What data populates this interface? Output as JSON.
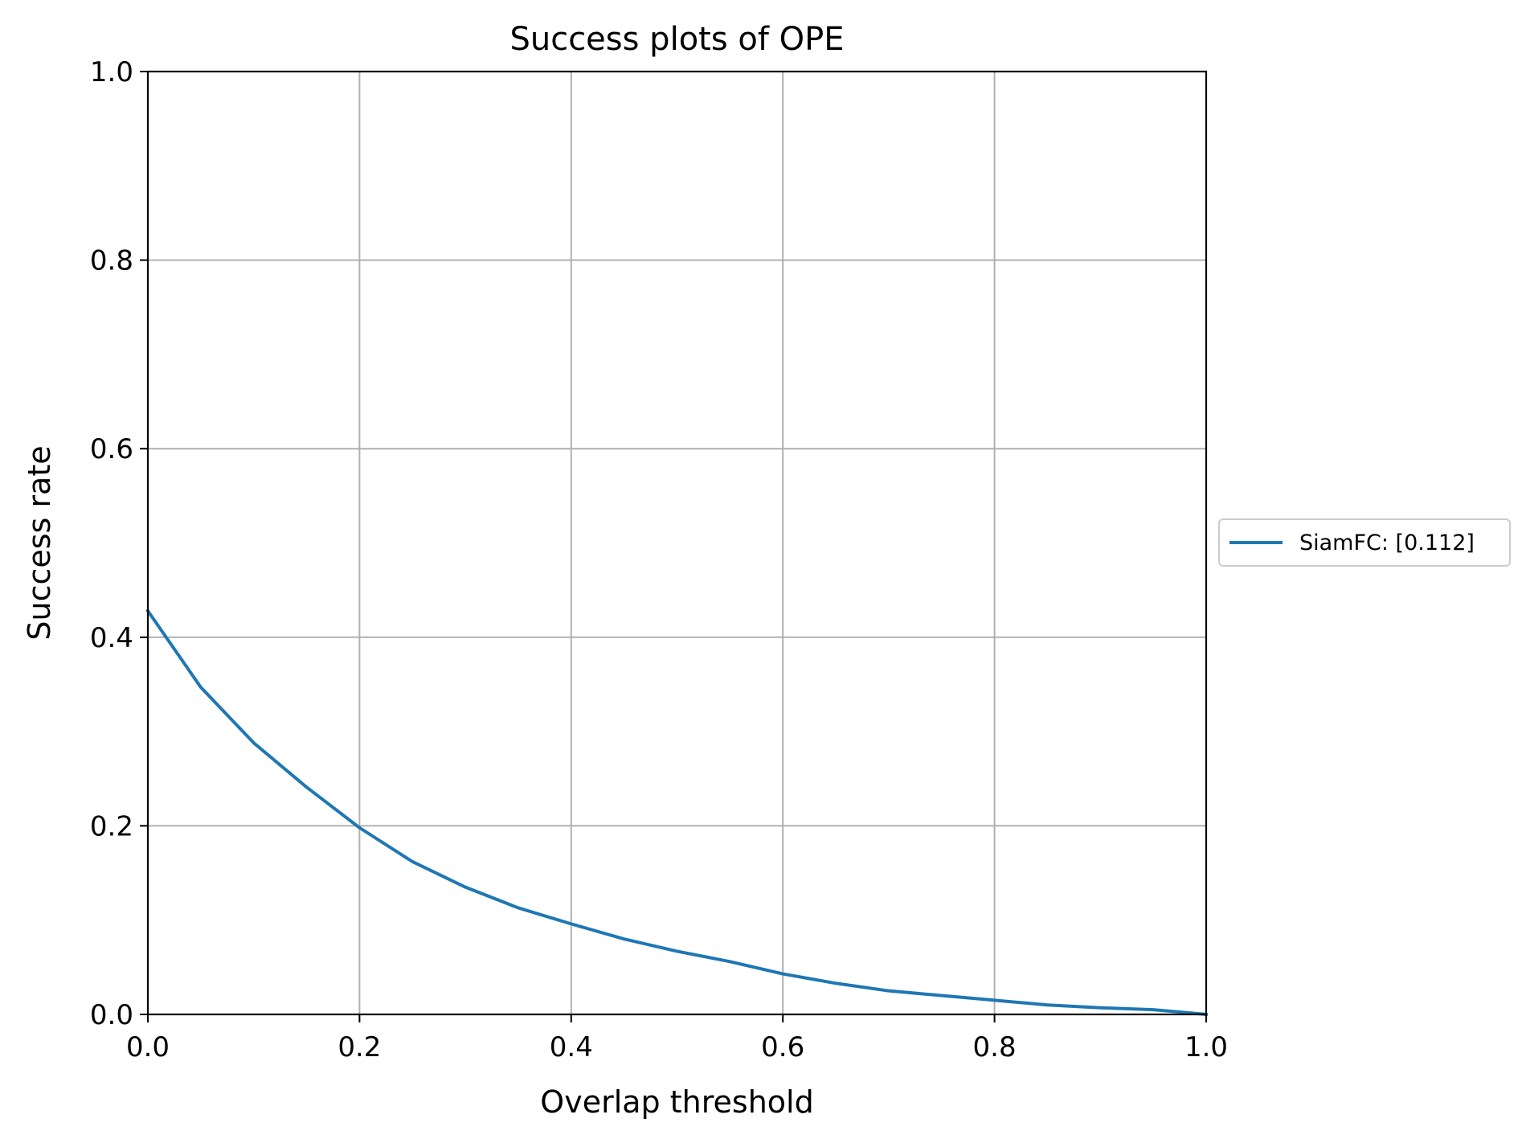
{
  "chart_data": {
    "type": "line",
    "title": "Success plots of OPE",
    "xlabel": "Overlap threshold",
    "ylabel": "Success rate",
    "xlim": [
      0,
      1
    ],
    "ylim": [
      0,
      1
    ],
    "xticks": [
      "0.0",
      "0.2",
      "0.4",
      "0.6",
      "0.8",
      "1.0"
    ],
    "yticks": [
      "0.0",
      "0.2",
      "0.4",
      "0.6",
      "0.8",
      "1.0"
    ],
    "grid": true,
    "legend_position": "outside-right",
    "series": [
      {
        "name": "SiamFC: [0.112]",
        "color": "#1f77b4",
        "x": [
          0.0,
          0.05,
          0.1,
          0.15,
          0.2,
          0.25,
          0.3,
          0.35,
          0.4,
          0.45,
          0.5,
          0.55,
          0.6,
          0.65,
          0.7,
          0.75,
          0.8,
          0.85,
          0.9,
          0.95,
          1.0
        ],
        "y": [
          0.428,
          0.347,
          0.288,
          0.241,
          0.198,
          0.162,
          0.135,
          0.113,
          0.096,
          0.08,
          0.067,
          0.056,
          0.043,
          0.033,
          0.025,
          0.02,
          0.015,
          0.01,
          0.007,
          0.005,
          0.0
        ]
      }
    ]
  }
}
